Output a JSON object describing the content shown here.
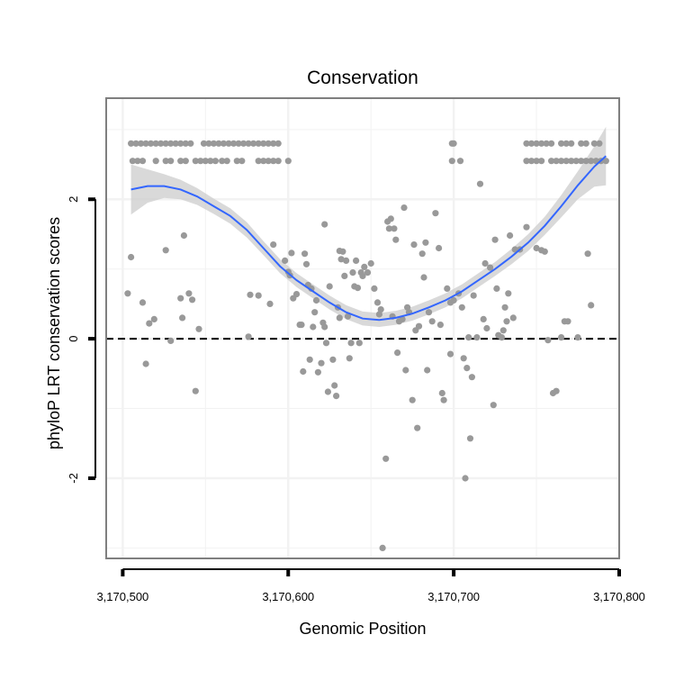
{
  "chart_data": {
    "type": "scatter",
    "title": "Conservation",
    "xlabel": "Genomic Position",
    "ylabel": "phyloP LRT conservation scores",
    "xlim": [
      3170490,
      3170800
    ],
    "ylim": [
      -3.15,
      3.45
    ],
    "x_ticks": [
      3170500,
      3170600,
      3170700,
      3170800
    ],
    "x_tick_labels": [
      "3,170,500",
      "3,170,600",
      "3,170,700",
      "3,170,800"
    ],
    "y_ticks": [
      2,
      0,
      -2
    ],
    "y_tick_labels": [
      "2",
      "0",
      "-2"
    ],
    "grid": true,
    "reference_line": {
      "y": 0,
      "style": "dashed"
    },
    "colors": {
      "points": "#999999",
      "smooth": "#3366ff",
      "band": "#cccccc",
      "grid": "#f2f2f2",
      "frame": "#7f7f7f"
    },
    "points": [
      [
        3170505,
        2.8
      ],
      [
        3170508,
        2.8
      ],
      [
        3170511,
        2.8
      ],
      [
        3170514,
        2.8
      ],
      [
        3170517,
        2.8
      ],
      [
        3170520,
        2.8
      ],
      [
        3170523,
        2.8
      ],
      [
        3170526,
        2.8
      ],
      [
        3170529,
        2.8
      ],
      [
        3170532,
        2.8
      ],
      [
        3170535,
        2.8
      ],
      [
        3170538,
        2.8
      ],
      [
        3170541,
        2.8
      ],
      [
        3170549,
        2.8
      ],
      [
        3170552,
        2.8
      ],
      [
        3170555,
        2.8
      ],
      [
        3170558,
        2.8
      ],
      [
        3170561,
        2.8
      ],
      [
        3170564,
        2.8
      ],
      [
        3170567,
        2.8
      ],
      [
        3170570,
        2.8
      ],
      [
        3170573,
        2.8
      ],
      [
        3170576,
        2.8
      ],
      [
        3170579,
        2.8
      ],
      [
        3170582,
        2.8
      ],
      [
        3170585,
        2.8
      ],
      [
        3170588,
        2.8
      ],
      [
        3170591,
        2.8
      ],
      [
        3170594,
        2.8
      ],
      [
        3170506,
        2.55
      ],
      [
        3170509,
        2.55
      ],
      [
        3170512,
        2.55
      ],
      [
        3170520,
        2.55
      ],
      [
        3170526,
        2.55
      ],
      [
        3170529,
        2.55
      ],
      [
        3170535,
        2.55
      ],
      [
        3170538,
        2.55
      ],
      [
        3170544,
        2.55
      ],
      [
        3170547,
        2.55
      ],
      [
        3170550,
        2.55
      ],
      [
        3170553,
        2.55
      ],
      [
        3170556,
        2.55
      ],
      [
        3170560,
        2.55
      ],
      [
        3170563,
        2.55
      ],
      [
        3170569,
        2.55
      ],
      [
        3170572,
        2.55
      ],
      [
        3170582,
        2.55
      ],
      [
        3170585,
        2.55
      ],
      [
        3170588,
        2.55
      ],
      [
        3170591,
        2.55
      ],
      [
        3170594,
        2.55
      ],
      [
        3170600,
        2.55
      ],
      [
        3170699,
        2.8
      ],
      [
        3170700,
        2.8
      ],
      [
        3170699,
        2.55
      ],
      [
        3170704,
        2.55
      ],
      [
        3170744,
        2.8
      ],
      [
        3170747,
        2.8
      ],
      [
        3170750,
        2.8
      ],
      [
        3170753,
        2.8
      ],
      [
        3170756,
        2.8
      ],
      [
        3170759,
        2.8
      ],
      [
        3170765,
        2.8
      ],
      [
        3170768,
        2.8
      ],
      [
        3170771,
        2.8
      ],
      [
        3170777,
        2.8
      ],
      [
        3170780,
        2.8
      ],
      [
        3170785,
        2.8
      ],
      [
        3170788,
        2.8
      ],
      [
        3170744,
        2.55
      ],
      [
        3170747,
        2.55
      ],
      [
        3170750,
        2.55
      ],
      [
        3170753,
        2.55
      ],
      [
        3170759,
        2.55
      ],
      [
        3170762,
        2.55
      ],
      [
        3170765,
        2.55
      ],
      [
        3170768,
        2.55
      ],
      [
        3170771,
        2.55
      ],
      [
        3170774,
        2.55
      ],
      [
        3170777,
        2.55
      ],
      [
        3170780,
        2.55
      ],
      [
        3170783,
        2.55
      ],
      [
        3170786,
        2.55
      ],
      [
        3170789,
        2.55
      ],
      [
        3170792,
        2.55
      ],
      [
        3170505,
        1.17
      ],
      [
        3170503,
        0.65
      ],
      [
        3170512,
        0.52
      ],
      [
        3170516,
        0.22
      ],
      [
        3170519,
        0.28
      ],
      [
        3170514,
        -0.36
      ],
      [
        3170526,
        1.27
      ],
      [
        3170529,
        -0.03
      ],
      [
        3170535,
        0.58
      ],
      [
        3170537,
        1.48
      ],
      [
        3170536,
        0.3
      ],
      [
        3170540,
        0.65
      ],
      [
        3170542,
        0.56
      ],
      [
        3170544,
        -0.75
      ],
      [
        3170546,
        0.14
      ],
      [
        3170576,
        0.03
      ],
      [
        3170577,
        0.63
      ],
      [
        3170582,
        0.62
      ],
      [
        3170589,
        0.5
      ],
      [
        3170591,
        1.35
      ],
      [
        3170598,
        1.12
      ],
      [
        3170600,
        0.96
      ],
      [
        3170601,
        0.91
      ],
      [
        3170602,
        1.23
      ],
      [
        3170603,
        0.58
      ],
      [
        3170605,
        0.64
      ],
      [
        3170607,
        0.2
      ],
      [
        3170608,
        0.2
      ],
      [
        3170609,
        -0.47
      ],
      [
        3170610,
        1.22
      ],
      [
        3170611,
        1.07
      ],
      [
        3170612,
        0.77
      ],
      [
        3170613,
        -0.3
      ],
      [
        3170614,
        0.72
      ],
      [
        3170615,
        0.17
      ],
      [
        3170616,
        0.38
      ],
      [
        3170617,
        0.55
      ],
      [
        3170618,
        -0.48
      ],
      [
        3170620,
        -0.35
      ],
      [
        3170621,
        0.23
      ],
      [
        3170622,
        1.64
      ],
      [
        3170622,
        0.17
      ],
      [
        3170623,
        -0.06
      ],
      [
        3170624,
        -0.76
      ],
      [
        3170625,
        0.75
      ],
      [
        3170627,
        -0.3
      ],
      [
        3170628,
        -0.67
      ],
      [
        3170629,
        -0.82
      ],
      [
        3170630,
        0.45
      ],
      [
        3170631,
        0.3
      ],
      [
        3170631,
        1.26
      ],
      [
        3170632,
        1.14
      ],
      [
        3170633,
        1.25
      ],
      [
        3170634,
        0.9
      ],
      [
        3170635,
        1.12
      ],
      [
        3170636,
        0.32
      ],
      [
        3170637,
        -0.28
      ],
      [
        3170638,
        -0.06
      ],
      [
        3170639,
        0.95
      ],
      [
        3170640,
        0.75
      ],
      [
        3170641,
        1.12
      ],
      [
        3170642,
        0.73
      ],
      [
        3170643,
        -0.06
      ],
      [
        3170644,
        0.95
      ],
      [
        3170645,
        0.9
      ],
      [
        3170646,
        1.03
      ],
      [
        3170648,
        0.95
      ],
      [
        3170650,
        1.08
      ],
      [
        3170652,
        0.72
      ],
      [
        3170654,
        0.52
      ],
      [
        3170655,
        0.35
      ],
      [
        3170656,
        0.42
      ],
      [
        3170657,
        -3.0
      ],
      [
        3170659,
        -1.72
      ],
      [
        3170660,
        1.68
      ],
      [
        3170661,
        1.58
      ],
      [
        3170662,
        1.72
      ],
      [
        3170663,
        0.32
      ],
      [
        3170664,
        1.58
      ],
      [
        3170665,
        1.42
      ],
      [
        3170666,
        -0.2
      ],
      [
        3170667,
        0.25
      ],
      [
        3170669,
        0.28
      ],
      [
        3170670,
        1.88
      ],
      [
        3170671,
        -0.45
      ],
      [
        3170672,
        0.45
      ],
      [
        3170673,
        0.38
      ],
      [
        3170675,
        -0.88
      ],
      [
        3170676,
        1.35
      ],
      [
        3170677,
        0.12
      ],
      [
        3170678,
        -1.28
      ],
      [
        3170679,
        0.18
      ],
      [
        3170681,
        1.22
      ],
      [
        3170682,
        0.88
      ],
      [
        3170683,
        1.38
      ],
      [
        3170684,
        -0.45
      ],
      [
        3170685,
        0.38
      ],
      [
        3170687,
        0.25
      ],
      [
        3170689,
        1.8
      ],
      [
        3170691,
        1.3
      ],
      [
        3170692,
        0.2
      ],
      [
        3170693,
        -0.78
      ],
      [
        3170694,
        -0.88
      ],
      [
        3170696,
        0.72
      ],
      [
        3170698,
        -0.22
      ],
      [
        3170698,
        0.52
      ],
      [
        3170700,
        0.55
      ],
      [
        3170703,
        0.65
      ],
      [
        3170705,
        0.45
      ],
      [
        3170706,
        -0.28
      ],
      [
        3170707,
        -2.0
      ],
      [
        3170708,
        -0.42
      ],
      [
        3170709,
        0.02
      ],
      [
        3170710,
        -1.43
      ],
      [
        3170711,
        -0.55
      ],
      [
        3170712,
        0.62
      ],
      [
        3170714,
        0.02
      ],
      [
        3170716,
        2.22
      ],
      [
        3170718,
        0.28
      ],
      [
        3170719,
        1.08
      ],
      [
        3170720,
        0.15
      ],
      [
        3170722,
        1.02
      ],
      [
        3170724,
        -0.95
      ],
      [
        3170725,
        1.42
      ],
      [
        3170726,
        0.72
      ],
      [
        3170727,
        0.05
      ],
      [
        3170729,
        0.02
      ],
      [
        3170730,
        0.12
      ],
      [
        3170731,
        0.45
      ],
      [
        3170732,
        0.25
      ],
      [
        3170733,
        0.65
      ],
      [
        3170734,
        1.48
      ],
      [
        3170736,
        0.3
      ],
      [
        3170737,
        1.28
      ],
      [
        3170740,
        1.28
      ],
      [
        3170744,
        1.6
      ],
      [
        3170750,
        1.3
      ],
      [
        3170753,
        1.27
      ],
      [
        3170755,
        1.25
      ],
      [
        3170757,
        -0.02
      ],
      [
        3170760,
        -0.78
      ],
      [
        3170762,
        -0.75
      ],
      [
        3170765,
        0.02
      ],
      [
        3170767,
        0.25
      ],
      [
        3170769,
        0.25
      ],
      [
        3170775,
        0.02
      ],
      [
        3170781,
        1.22
      ],
      [
        3170783,
        0.48
      ]
    ],
    "smooth": [
      [
        3170505,
        2.14
      ],
      [
        3170515,
        2.19
      ],
      [
        3170525,
        2.19
      ],
      [
        3170535,
        2.14
      ],
      [
        3170545,
        2.04
      ],
      [
        3170555,
        1.9
      ],
      [
        3170565,
        1.76
      ],
      [
        3170575,
        1.56
      ],
      [
        3170585,
        1.3
      ],
      [
        3170595,
        1.04
      ],
      [
        3170605,
        0.84
      ],
      [
        3170615,
        0.68
      ],
      [
        3170625,
        0.52
      ],
      [
        3170635,
        0.38
      ],
      [
        3170645,
        0.29
      ],
      [
        3170655,
        0.27
      ],
      [
        3170665,
        0.3
      ],
      [
        3170675,
        0.36
      ],
      [
        3170685,
        0.45
      ],
      [
        3170695,
        0.55
      ],
      [
        3170705,
        0.68
      ],
      [
        3170715,
        0.84
      ],
      [
        3170725,
        1.0
      ],
      [
        3170735,
        1.18
      ],
      [
        3170745,
        1.38
      ],
      [
        3170755,
        1.62
      ],
      [
        3170765,
        1.9
      ],
      [
        3170775,
        2.2
      ],
      [
        3170785,
        2.47
      ],
      [
        3170792,
        2.62
      ]
    ],
    "band_halfwidth": [
      0.36,
      0.24,
      0.17,
      0.14,
      0.12,
      0.11,
      0.11,
      0.11,
      0.1,
      0.1,
      0.1,
      0.1,
      0.1,
      0.1,
      0.1,
      0.1,
      0.1,
      0.1,
      0.1,
      0.1,
      0.1,
      0.1,
      0.1,
      0.11,
      0.12,
      0.13,
      0.16,
      0.2,
      0.29,
      0.42
    ]
  }
}
